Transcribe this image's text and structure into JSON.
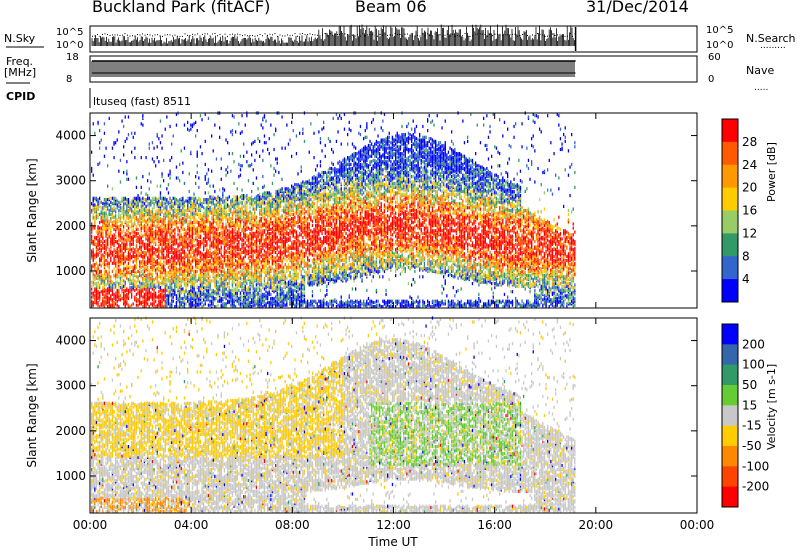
{
  "header": {
    "site": "Buckland Park (fitACF)",
    "beam": "Beam 06",
    "date": "31/Dec/2014"
  },
  "status_panels": {
    "nsky_label": "N.Sky",
    "nsky_ticks": [
      "10^5",
      "10^0"
    ],
    "nsearch_label": "N.Search",
    "freq_label_1": "Freq.",
    "freq_label_2": "[MHz]",
    "freq_ticks": [
      "18",
      "8"
    ],
    "nave_label": "Nave",
    "nave_ticks": [
      "60",
      "0"
    ],
    "cpid_label": "CPID",
    "cpid_value": "ltuseq (fast) 8511"
  },
  "chart_data": [
    {
      "type": "heatmap",
      "name": "power-panel",
      "ylabel": "Slant Range [km]",
      "xlim": [
        "00:00",
        "24:00"
      ],
      "ylim_km": [
        180,
        4500
      ],
      "yticks": [
        1000,
        2000,
        3000,
        4000
      ],
      "xticks": [
        "00:00",
        "04:00",
        "08:00",
        "12:00",
        "16:00",
        "20:00",
        "00:00"
      ],
      "data_end_hour": 19.2,
      "colorbar": {
        "label": "Power [dB]",
        "ticks": [
          "28",
          "24",
          "20",
          "16",
          "12",
          "8",
          "4"
        ],
        "colors": [
          "#ff0000",
          "#ff5a00",
          "#ff9900",
          "#ffcc00",
          "#99cc66",
          "#339966",
          "#3366cc",
          "#0000ff"
        ]
      }
    },
    {
      "type": "heatmap",
      "name": "velocity-panel",
      "ylabel": "Slant Range [km]",
      "xlabel": "Time UT",
      "xlim": [
        "00:00",
        "24:00"
      ],
      "ylim_km": [
        180,
        4500
      ],
      "yticks": [
        1000,
        2000,
        3000,
        4000
      ],
      "xticks": [
        "00:00",
        "04:00",
        "08:00",
        "12:00",
        "16:00",
        "20:00",
        "00:00"
      ],
      "data_end_hour": 19.2,
      "colorbar": {
        "label": "Velocity [m s-1]",
        "ticks": [
          "200",
          "100",
          "50",
          "15",
          "-15",
          "-50",
          "-100",
          "-200"
        ],
        "colors": [
          "#0000ff",
          "#3366aa",
          "#339966",
          "#66cc33",
          "#c8c8c8",
          "#ffcc00",
          "#ff8800",
          "#ff4400",
          "#ff0000"
        ]
      }
    }
  ]
}
